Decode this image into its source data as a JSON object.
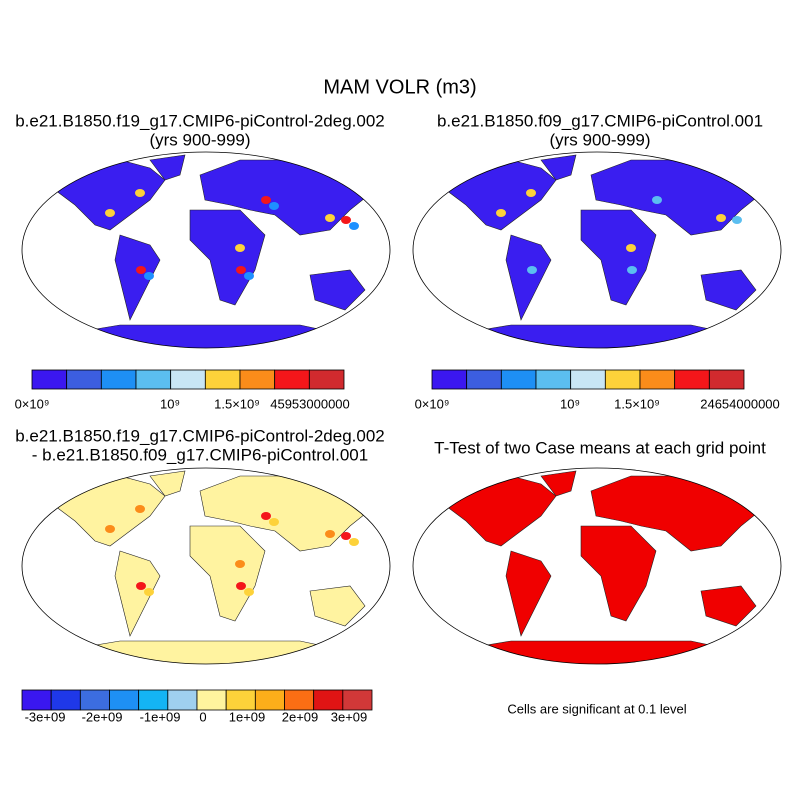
{
  "title": "MAM VOLR (m3)",
  "panels": [
    {
      "title_lines": [
        "b.e21.B1850.f19_g17.CMIP6-piControl-2deg.002",
        "(yrs 900-999)"
      ]
    },
    {
      "title_lines": [
        "b.e21.B1850.f09_g17.CMIP6-piControl.001",
        "(yrs 900-999)"
      ]
    },
    {
      "title_lines": [
        "b.e21.B1850.f19_g17.CMIP6-piControl-2deg.002",
        "- b.e21.B1850.f09_g17.CMIP6-piControl.001"
      ]
    },
    {
      "title_lines": [
        "T-Test of two Case means at each grid point"
      ]
    }
  ],
  "colorbars": [
    {
      "labels": [
        "0×10⁹",
        "10⁹",
        "1.5×10⁹",
        "45953000000"
      ]
    },
    {
      "labels": [
        "0×10⁹",
        "10⁹",
        "1.5×10⁹",
        "24654000000"
      ]
    },
    {
      "labels": [
        "-3e+09",
        "-2e+09",
        "-1e+09",
        "0",
        "1e+09",
        "2e+09",
        "3e+09"
      ]
    }
  ],
  "note": "Cells are significant at 0.1 level"
}
